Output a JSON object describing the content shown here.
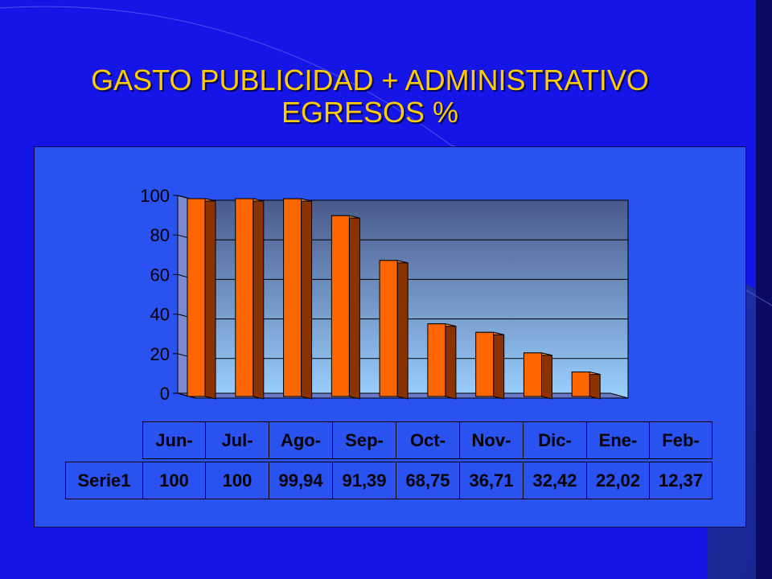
{
  "slide": {
    "title_line1": "GASTO PUBLICIDAD + ADMINISTRATIVO",
    "title_line2": "EGRESOS %",
    "colors": {
      "background": "#1515e8",
      "title": "#ffcc00",
      "bar_front": "#ff6600",
      "bar_side": "#8a3300"
    }
  },
  "chart_data": {
    "type": "bar",
    "categories": [
      "Jun-",
      "Jul-",
      "Ago-",
      "Sep-",
      "Oct-",
      "Nov-",
      "Dic-",
      "Ene-",
      "Feb-"
    ],
    "series": [
      {
        "name": "Serie1",
        "values": [
          100,
          100,
          99.94,
          91.39,
          68.75,
          36.71,
          32.42,
          22.02,
          12.37
        ]
      }
    ],
    "value_labels": [
      "100",
      "100",
      "99,94",
      "91,39",
      "68,75",
      "36,71",
      "32,42",
      "22,02",
      "12,37"
    ],
    "y_ticks": [
      "0",
      "20",
      "40",
      "60",
      "80",
      "100"
    ],
    "ylim": [
      0,
      100
    ],
    "grid": true,
    "legend": "data table below chart"
  }
}
